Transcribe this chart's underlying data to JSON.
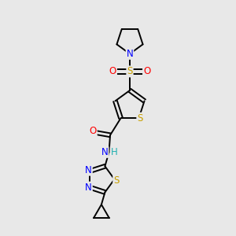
{
  "background_color": "#e8e8e8",
  "bond_color": "#000000",
  "atom_colors": {
    "S": "#c8a000",
    "N": "#0000ff",
    "O": "#ff0000",
    "H": "#20b0b0",
    "C": "#000000"
  },
  "font_size": 8.5,
  "line_width": 1.4,
  "figure_size": [
    3.0,
    3.0
  ],
  "dpi": 100,
  "xlim": [
    0,
    10
  ],
  "ylim": [
    0,
    10
  ]
}
